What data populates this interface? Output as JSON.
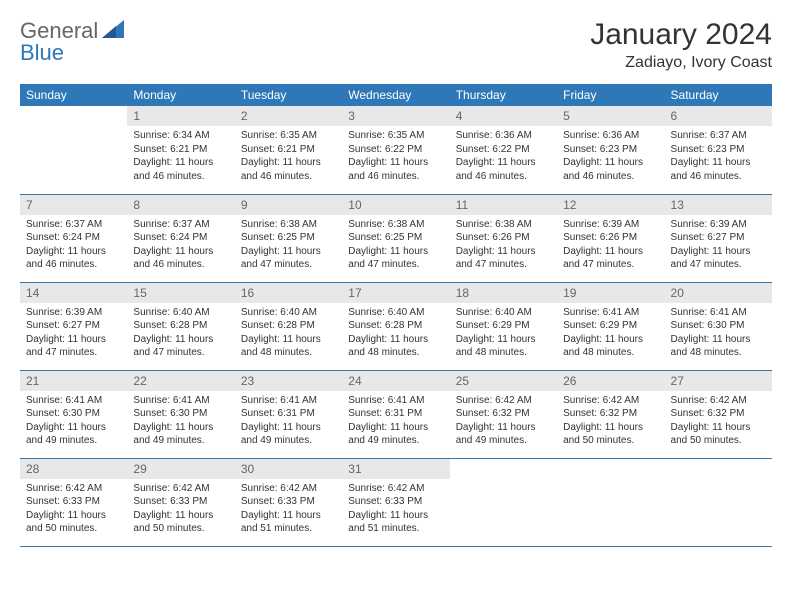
{
  "brand": {
    "part1": "General",
    "part2": "Blue"
  },
  "month_title": "January 2024",
  "location": "Zadiayo, Ivory Coast",
  "colors": {
    "header_bg": "#2f78b8",
    "header_text": "#ffffff",
    "daynum_bg": "#e8e8e8",
    "daynum_text": "#666666",
    "rule": "#2f78b8",
    "body_text": "#333333"
  },
  "weekdays": [
    "Sunday",
    "Monday",
    "Tuesday",
    "Wednesday",
    "Thursday",
    "Friday",
    "Saturday"
  ],
  "weeks": [
    [
      null,
      {
        "n": "1",
        "sr": "Sunrise: 6:34 AM",
        "ss": "Sunset: 6:21 PM",
        "dl": "Daylight: 11 hours and 46 minutes."
      },
      {
        "n": "2",
        "sr": "Sunrise: 6:35 AM",
        "ss": "Sunset: 6:21 PM",
        "dl": "Daylight: 11 hours and 46 minutes."
      },
      {
        "n": "3",
        "sr": "Sunrise: 6:35 AM",
        "ss": "Sunset: 6:22 PM",
        "dl": "Daylight: 11 hours and 46 minutes."
      },
      {
        "n": "4",
        "sr": "Sunrise: 6:36 AM",
        "ss": "Sunset: 6:22 PM",
        "dl": "Daylight: 11 hours and 46 minutes."
      },
      {
        "n": "5",
        "sr": "Sunrise: 6:36 AM",
        "ss": "Sunset: 6:23 PM",
        "dl": "Daylight: 11 hours and 46 minutes."
      },
      {
        "n": "6",
        "sr": "Sunrise: 6:37 AM",
        "ss": "Sunset: 6:23 PM",
        "dl": "Daylight: 11 hours and 46 minutes."
      }
    ],
    [
      {
        "n": "7",
        "sr": "Sunrise: 6:37 AM",
        "ss": "Sunset: 6:24 PM",
        "dl": "Daylight: 11 hours and 46 minutes."
      },
      {
        "n": "8",
        "sr": "Sunrise: 6:37 AM",
        "ss": "Sunset: 6:24 PM",
        "dl": "Daylight: 11 hours and 46 minutes."
      },
      {
        "n": "9",
        "sr": "Sunrise: 6:38 AM",
        "ss": "Sunset: 6:25 PM",
        "dl": "Daylight: 11 hours and 47 minutes."
      },
      {
        "n": "10",
        "sr": "Sunrise: 6:38 AM",
        "ss": "Sunset: 6:25 PM",
        "dl": "Daylight: 11 hours and 47 minutes."
      },
      {
        "n": "11",
        "sr": "Sunrise: 6:38 AM",
        "ss": "Sunset: 6:26 PM",
        "dl": "Daylight: 11 hours and 47 minutes."
      },
      {
        "n": "12",
        "sr": "Sunrise: 6:39 AM",
        "ss": "Sunset: 6:26 PM",
        "dl": "Daylight: 11 hours and 47 minutes."
      },
      {
        "n": "13",
        "sr": "Sunrise: 6:39 AM",
        "ss": "Sunset: 6:27 PM",
        "dl": "Daylight: 11 hours and 47 minutes."
      }
    ],
    [
      {
        "n": "14",
        "sr": "Sunrise: 6:39 AM",
        "ss": "Sunset: 6:27 PM",
        "dl": "Daylight: 11 hours and 47 minutes."
      },
      {
        "n": "15",
        "sr": "Sunrise: 6:40 AM",
        "ss": "Sunset: 6:28 PM",
        "dl": "Daylight: 11 hours and 47 minutes."
      },
      {
        "n": "16",
        "sr": "Sunrise: 6:40 AM",
        "ss": "Sunset: 6:28 PM",
        "dl": "Daylight: 11 hours and 48 minutes."
      },
      {
        "n": "17",
        "sr": "Sunrise: 6:40 AM",
        "ss": "Sunset: 6:28 PM",
        "dl": "Daylight: 11 hours and 48 minutes."
      },
      {
        "n": "18",
        "sr": "Sunrise: 6:40 AM",
        "ss": "Sunset: 6:29 PM",
        "dl": "Daylight: 11 hours and 48 minutes."
      },
      {
        "n": "19",
        "sr": "Sunrise: 6:41 AM",
        "ss": "Sunset: 6:29 PM",
        "dl": "Daylight: 11 hours and 48 minutes."
      },
      {
        "n": "20",
        "sr": "Sunrise: 6:41 AM",
        "ss": "Sunset: 6:30 PM",
        "dl": "Daylight: 11 hours and 48 minutes."
      }
    ],
    [
      {
        "n": "21",
        "sr": "Sunrise: 6:41 AM",
        "ss": "Sunset: 6:30 PM",
        "dl": "Daylight: 11 hours and 49 minutes."
      },
      {
        "n": "22",
        "sr": "Sunrise: 6:41 AM",
        "ss": "Sunset: 6:30 PM",
        "dl": "Daylight: 11 hours and 49 minutes."
      },
      {
        "n": "23",
        "sr": "Sunrise: 6:41 AM",
        "ss": "Sunset: 6:31 PM",
        "dl": "Daylight: 11 hours and 49 minutes."
      },
      {
        "n": "24",
        "sr": "Sunrise: 6:41 AM",
        "ss": "Sunset: 6:31 PM",
        "dl": "Daylight: 11 hours and 49 minutes."
      },
      {
        "n": "25",
        "sr": "Sunrise: 6:42 AM",
        "ss": "Sunset: 6:32 PM",
        "dl": "Daylight: 11 hours and 49 minutes."
      },
      {
        "n": "26",
        "sr": "Sunrise: 6:42 AM",
        "ss": "Sunset: 6:32 PM",
        "dl": "Daylight: 11 hours and 50 minutes."
      },
      {
        "n": "27",
        "sr": "Sunrise: 6:42 AM",
        "ss": "Sunset: 6:32 PM",
        "dl": "Daylight: 11 hours and 50 minutes."
      }
    ],
    [
      {
        "n": "28",
        "sr": "Sunrise: 6:42 AM",
        "ss": "Sunset: 6:33 PM",
        "dl": "Daylight: 11 hours and 50 minutes."
      },
      {
        "n": "29",
        "sr": "Sunrise: 6:42 AM",
        "ss": "Sunset: 6:33 PM",
        "dl": "Daylight: 11 hours and 50 minutes."
      },
      {
        "n": "30",
        "sr": "Sunrise: 6:42 AM",
        "ss": "Sunset: 6:33 PM",
        "dl": "Daylight: 11 hours and 51 minutes."
      },
      {
        "n": "31",
        "sr": "Sunrise: 6:42 AM",
        "ss": "Sunset: 6:33 PM",
        "dl": "Daylight: 11 hours and 51 minutes."
      },
      null,
      null,
      null
    ]
  ]
}
